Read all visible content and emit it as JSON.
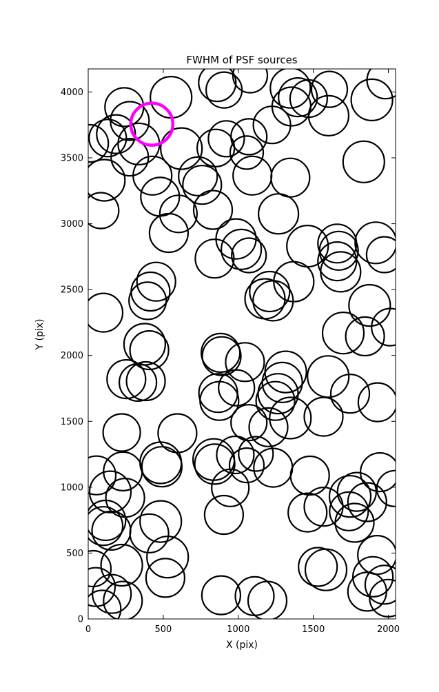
{
  "figure": {
    "background_color": "#ffffff",
    "axes_edge_color": "#000000",
    "circle_color": "#000000",
    "highlight_color": "#ff00ff"
  },
  "chart_data": {
    "type": "scatter",
    "title": "FWHM of PSF sources",
    "xlabel": "X (pix)",
    "ylabel": "Y (pix)",
    "xlim": [
      0,
      2048
    ],
    "ylim": [
      0,
      4175
    ],
    "x_tick_values": [
      0,
      500,
      1000,
      1500,
      2000
    ],
    "x_tick_labels": [
      "0",
      "500",
      "1000",
      "1500",
      "2000"
    ],
    "y_tick_values": [
      0,
      500,
      1000,
      1500,
      2000,
      2500,
      3000,
      3500,
      4000
    ],
    "y_tick_labels": [
      "0",
      "500",
      "1000",
      "1500",
      "2000",
      "2500",
      "3000",
      "3500",
      "4000"
    ],
    "grid": false,
    "legend": null,
    "marker": "open-circle",
    "columns": [
      "x_pix",
      "y_pix",
      "marker_radius_px"
    ],
    "sources": [
      [
        240,
        3885,
        28
      ],
      [
        277,
        3780,
        28
      ],
      [
        185,
        3680,
        28
      ],
      [
        130,
        3650,
        27
      ],
      [
        10,
        3610,
        27
      ],
      [
        552,
        3960,
        30
      ],
      [
        860,
        4070,
        27
      ],
      [
        905,
        4015,
        26
      ],
      [
        337,
        3605,
        30
      ],
      [
        277,
        3505,
        27
      ],
      [
        428,
        3365,
        28
      ],
      [
        107,
        3330,
        30
      ],
      [
        84,
        3100,
        26
      ],
      [
        479,
        3205,
        28
      ],
      [
        621,
        3570,
        30
      ],
      [
        731,
        3360,
        28
      ],
      [
        759,
        3295,
        28
      ],
      [
        850,
        3575,
        27
      ],
      [
        920,
        3645,
        26
      ],
      [
        601,
        3075,
        27
      ],
      [
        537,
        2930,
        28
      ],
      [
        831,
        3105,
        28
      ],
      [
        842,
        2735,
        28
      ],
      [
        985,
        2885,
        29
      ],
      [
        1020,
        2805,
        29
      ],
      [
        1079,
        4125,
        25
      ],
      [
        1347,
        4030,
        29
      ],
      [
        1397,
        3960,
        28
      ],
      [
        1354,
        3890,
        28
      ],
      [
        1469,
        3950,
        27
      ],
      [
        1607,
        4020,
        26
      ],
      [
        1602,
        3820,
        29
      ],
      [
        1224,
        3750,
        27
      ],
      [
        1890,
        3940,
        30
      ],
      [
        1982,
        4090,
        27
      ],
      [
        1071,
        3660,
        26
      ],
      [
        1056,
        3540,
        24
      ],
      [
        1094,
        3365,
        28
      ],
      [
        1347,
        3350,
        28
      ],
      [
        1836,
        3470,
        30
      ],
      [
        1268,
        3075,
        29
      ],
      [
        1659,
        2850,
        28
      ],
      [
        1670,
        2795,
        28
      ],
      [
        1659,
        2715,
        28
      ],
      [
        1682,
        2635,
        29
      ],
      [
        1916,
        2855,
        30
      ],
      [
        1461,
        2830,
        30
      ],
      [
        101,
        2325,
        28
      ],
      [
        453,
        2560,
        28
      ],
      [
        415,
        2485,
        28
      ],
      [
        396,
        2415,
        27
      ],
      [
        376,
        2085,
        30
      ],
      [
        407,
        2040,
        28
      ],
      [
        254,
        1820,
        28
      ],
      [
        331,
        1795,
        27
      ],
      [
        384,
        1805,
        28
      ],
      [
        882,
        2020,
        28
      ],
      [
        889,
        1995,
        28
      ],
      [
        1044,
        1950,
        28
      ],
      [
        866,
        1715,
        28
      ],
      [
        874,
        1655,
        28
      ],
      [
        988,
        1755,
        26
      ],
      [
        223,
        1415,
        27
      ],
      [
        594,
        1410,
        28
      ],
      [
        1071,
        2760,
        25
      ],
      [
        1209,
        2485,
        29
      ],
      [
        1178,
        2430,
        29
      ],
      [
        1232,
        2415,
        29
      ],
      [
        1370,
        2560,
        29
      ],
      [
        1974,
        2765,
        26
      ],
      [
        1875,
        2380,
        30
      ],
      [
        1699,
        2170,
        30
      ],
      [
        1844,
        2145,
        28
      ],
      [
        2012,
        2215,
        27
      ],
      [
        1316,
        1875,
        30
      ],
      [
        1293,
        1795,
        29
      ],
      [
        1265,
        1710,
        29
      ],
      [
        1247,
        1655,
        28
      ],
      [
        1599,
        1840,
        30
      ],
      [
        1745,
        1710,
        28
      ],
      [
        1928,
        1645,
        28
      ],
      [
        1568,
        1535,
        28
      ],
      [
        1347,
        1525,
        30
      ],
      [
        1201,
        1455,
        28
      ],
      [
        1071,
        1490,
        26
      ],
      [
        231,
        1120,
        28
      ],
      [
        55,
        1090,
        28
      ],
      [
        147,
        965,
        30
      ],
      [
        246,
        920,
        28
      ],
      [
        483,
        1185,
        30
      ],
      [
        491,
        1155,
        29
      ],
      [
        836,
        1210,
        30
      ],
      [
        843,
        1175,
        29
      ],
      [
        980,
        1245,
        27
      ],
      [
        947,
        995,
        27
      ],
      [
        904,
        790,
        28
      ],
      [
        116,
        748,
        29
      ],
      [
        101,
        705,
        28
      ],
      [
        154,
        670,
        28
      ],
      [
        483,
        740,
        30
      ],
      [
        407,
        650,
        28
      ],
      [
        529,
        470,
        30
      ],
      [
        514,
        312,
        28
      ],
      [
        223,
        408,
        30
      ],
      [
        32,
        382,
        26
      ],
      [
        50,
        242,
        28
      ],
      [
        157,
        190,
        28
      ],
      [
        231,
        138,
        28
      ],
      [
        93,
        76,
        27
      ],
      [
        886,
        180,
        28
      ],
      [
        1117,
        1253,
        25
      ],
      [
        1232,
        1148,
        28
      ],
      [
        1056,
        1166,
        25
      ],
      [
        1477,
        1088,
        28
      ],
      [
        1745,
        930,
        30
      ],
      [
        1790,
        965,
        28
      ],
      [
        1859,
        887,
        28
      ],
      [
        1737,
        817,
        28
      ],
      [
        1775,
        730,
        28
      ],
      [
        1943,
        1114,
        28
      ],
      [
        2043,
        990,
        26
      ],
      [
        1461,
        808,
        28
      ],
      [
        1568,
        852,
        28
      ],
      [
        1584,
        373,
        30
      ],
      [
        1530,
        395,
        28
      ],
      [
        1925,
        486,
        28
      ],
      [
        1897,
        320,
        29
      ],
      [
        1974,
        260,
        28
      ],
      [
        1859,
        207,
        28
      ],
      [
        1999,
        158,
        27
      ],
      [
        1109,
        173,
        28
      ],
      [
        1194,
        138,
        28
      ]
    ],
    "highlighted_source": {
      "x": 424,
      "y": 3756,
      "marker_radius_px": 30.5,
      "color": "#ff00ff"
    }
  }
}
